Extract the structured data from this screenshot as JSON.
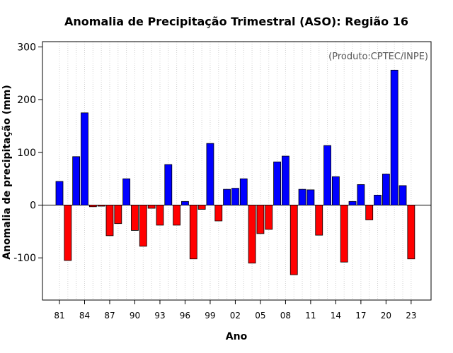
{
  "chart_data": {
    "type": "bar",
    "title": "Anomalia de Precipitação Trimestral (ASO): Região 16",
    "xlabel": "Ano",
    "ylabel": "Anomalia de precipitação (mm)",
    "annotation": "(Produto:CPTEC/INPE)",
    "ylim": [
      -180,
      310
    ],
    "yticks": [
      -100,
      0,
      100,
      200,
      300
    ],
    "grid": "vertical dotted lines at each year",
    "legend": "none",
    "colors": {
      "positive": "#0000ff",
      "negative": "#ff0000",
      "zero_line": "#000000",
      "grid": "#d3d3d3"
    },
    "categories": [
      "81",
      "82",
      "83",
      "84",
      "85",
      "86",
      "87",
      "88",
      "89",
      "90",
      "91",
      "92",
      "93",
      "94",
      "95",
      "96",
      "97",
      "98",
      "99",
      "00",
      "01",
      "02",
      "03",
      "04",
      "05",
      "06",
      "07",
      "08",
      "09",
      "10",
      "11",
      "12",
      "13",
      "14",
      "15",
      "16",
      "17",
      "18",
      "19",
      "20",
      "21",
      "22",
      "23"
    ],
    "xtick_labels": [
      "81",
      "84",
      "87",
      "90",
      "93",
      "96",
      "99",
      "02",
      "05",
      "08",
      "11",
      "14",
      "17",
      "20",
      "23"
    ],
    "values": [
      45,
      -105,
      92,
      175,
      -3,
      -2,
      -58,
      -35,
      50,
      -48,
      -78,
      -6,
      -38,
      77,
      -38,
      7,
      -102,
      -8,
      117,
      -30,
      30,
      32,
      50,
      -110,
      -54,
      -46,
      82,
      93,
      -132,
      30,
      29,
      -57,
      113,
      54,
      -108,
      7,
      39,
      -28,
      19,
      59,
      256,
      37,
      -102
    ]
  }
}
